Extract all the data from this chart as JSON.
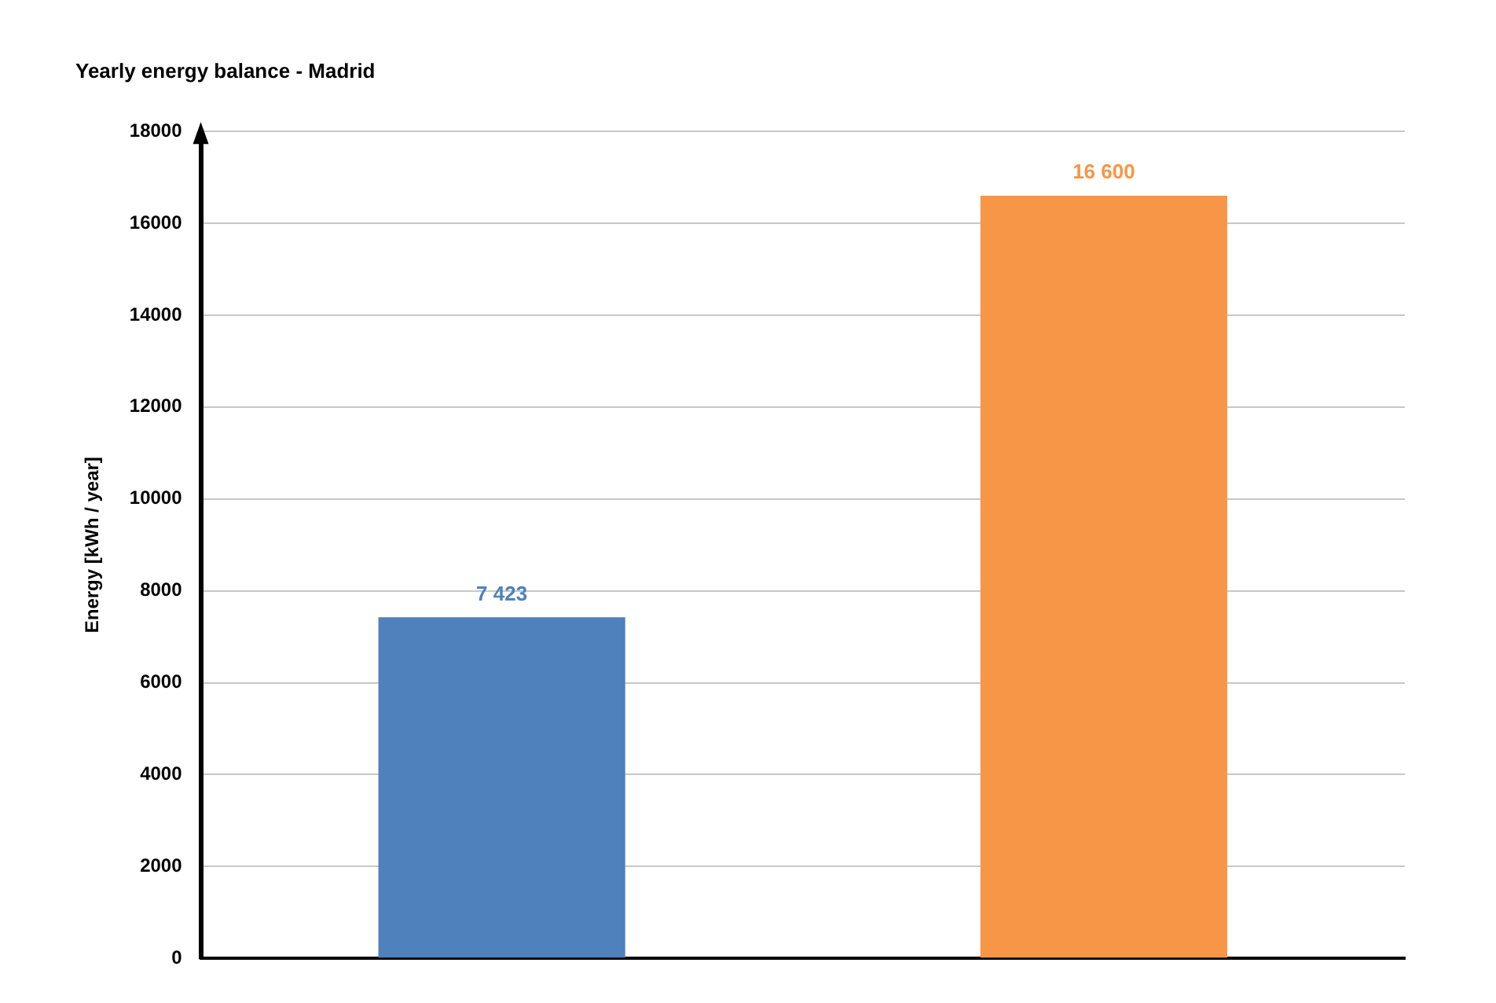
{
  "chart_data": {
    "type": "bar",
    "title": "Yearly energy balance - Madrid",
    "ylabel": "Energy [kWh / year]",
    "categories": [
      null,
      null
    ],
    "values": [
      7423,
      16600
    ],
    "colors": [
      "#4f81bd",
      "#f79646"
    ],
    "value_labels": [
      "7 423",
      "16 600"
    ],
    "ylim": [
      0,
      18000
    ],
    "yticks": [
      0,
      2000,
      4000,
      6000,
      8000,
      10000,
      12000,
      14000,
      16000,
      18000
    ],
    "grid": "y",
    "legend": false
  }
}
